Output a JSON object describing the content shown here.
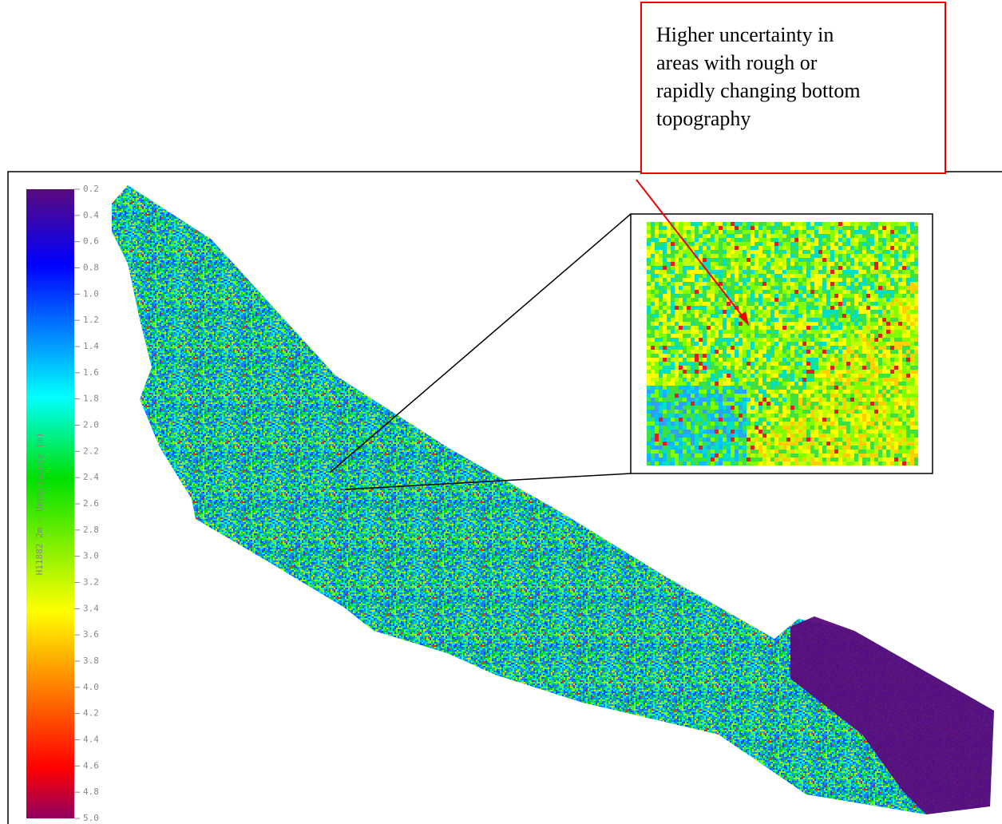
{
  "colorbar": {
    "label": "H11882 2m - Uncertainty (m)",
    "lim": [
      0.2,
      5.0
    ],
    "ticks": [
      0.2,
      0.4,
      0.6,
      0.8,
      {
        "value": 1,
        "label": "1.0"
      },
      1.2,
      1.4,
      1.6,
      1.8,
      {
        "value": 2,
        "label": "2.0"
      },
      2.2,
      2.4,
      2.6,
      2.8,
      {
        "value": 3,
        "label": "3.0"
      },
      3.2,
      3.4,
      3.6,
      3.8,
      {
        "value": 4,
        "label": "4.0"
      },
      4.2,
      4.4,
      4.6,
      4.8,
      {
        "value": 5,
        "label": "5.0"
      }
    ]
  },
  "annotation": {
    "lines": [
      "Higher uncertainty in",
      "areas with rough or",
      "rapidly changing bottom",
      "topography"
    ]
  }
}
